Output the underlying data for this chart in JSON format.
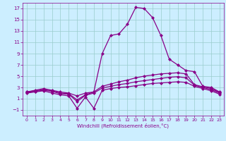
{
  "title": "",
  "xlabel": "Windchill (Refroidissement éolien,°C)",
  "ylabel": "",
  "background_color": "#cceeff",
  "line_color": "#880088",
  "xlim": [
    -0.5,
    23.5
  ],
  "ylim": [
    -2,
    18
  ],
  "yticks": [
    -1,
    1,
    3,
    5,
    7,
    9,
    11,
    13,
    15,
    17
  ],
  "xticks": [
    0,
    1,
    2,
    3,
    4,
    5,
    6,
    7,
    8,
    9,
    10,
    11,
    12,
    13,
    14,
    15,
    16,
    17,
    18,
    19,
    20,
    21,
    22,
    23
  ],
  "line1_x": [
    0,
    1,
    2,
    3,
    4,
    5,
    6,
    7,
    8,
    9,
    10,
    11,
    12,
    13,
    14,
    15,
    16,
    17,
    18,
    19,
    20,
    21,
    22,
    23
  ],
  "line1_y": [
    2.2,
    2.5,
    2.8,
    2.5,
    2.2,
    2.0,
    1.5,
    2.0,
    2.2,
    9.0,
    12.2,
    12.5,
    14.2,
    17.2,
    17.0,
    15.4,
    12.2,
    8.0,
    7.0,
    6.0,
    5.8,
    3.2,
    3.0,
    2.2
  ],
  "line2_x": [
    0,
    1,
    2,
    3,
    4,
    5,
    6,
    7,
    8,
    9,
    10,
    11,
    12,
    13,
    14,
    15,
    16,
    17,
    18,
    19,
    20,
    21,
    22,
    23
  ],
  "line2_y": [
    2.2,
    2.4,
    2.6,
    2.4,
    2.0,
    1.9,
    0.8,
    1.7,
    2.2,
    3.2,
    3.6,
    4.0,
    4.3,
    4.7,
    5.0,
    5.2,
    5.4,
    5.5,
    5.6,
    5.4,
    3.5,
    3.1,
    2.8,
    2.1
  ],
  "line3_x": [
    0,
    1,
    2,
    3,
    4,
    5,
    6,
    7,
    8,
    9,
    10,
    11,
    12,
    13,
    14,
    15,
    16,
    17,
    18,
    19,
    20,
    21,
    22,
    23
  ],
  "line3_y": [
    2.1,
    2.3,
    2.5,
    2.3,
    1.9,
    1.8,
    0.5,
    1.6,
    2.0,
    2.9,
    3.2,
    3.5,
    3.7,
    4.0,
    4.2,
    4.4,
    4.6,
    4.8,
    4.9,
    4.7,
    3.4,
    3.0,
    2.6,
    2.0
  ],
  "line4_x": [
    0,
    1,
    2,
    3,
    4,
    5,
    6,
    7,
    8,
    9,
    10,
    11,
    12,
    13,
    14,
    15,
    16,
    17,
    18,
    19,
    20,
    21,
    22,
    23
  ],
  "line4_y": [
    2.0,
    2.2,
    2.4,
    2.0,
    1.7,
    1.5,
    -0.7,
    1.3,
    -0.7,
    2.5,
    2.8,
    3.0,
    3.1,
    3.3,
    3.5,
    3.7,
    3.8,
    3.9,
    4.0,
    3.9,
    3.2,
    2.8,
    2.4,
    1.8
  ],
  "grid_color": "#99cccc",
  "marker": "D",
  "markersize": 2.0,
  "linewidth": 0.9
}
